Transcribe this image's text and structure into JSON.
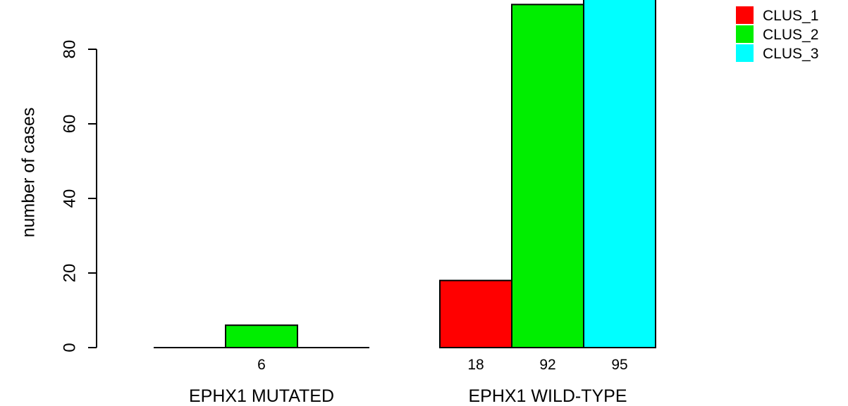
{
  "chart_data": {
    "type": "bar",
    "ylabel": "number of cases",
    "ylim": [
      0,
      92
    ],
    "yticks": [
      0,
      20,
      40,
      60,
      80
    ],
    "grid": false,
    "legend_placement": "top-right",
    "groups": [
      {
        "label": "EPHX1 MUTATED",
        "bars": [
          {
            "series": "CLUS_1",
            "value": 0,
            "label": ""
          },
          {
            "series": "CLUS_2",
            "value": 6,
            "label": "6"
          },
          {
            "series": "CLUS_3",
            "value": 0,
            "label": ""
          }
        ]
      },
      {
        "label": "EPHX1 WILD-TYPE",
        "bars": [
          {
            "series": "CLUS_1",
            "value": 18,
            "label": "18"
          },
          {
            "series": "CLUS_2",
            "value": 92,
            "label": "92"
          },
          {
            "series": "CLUS_3",
            "value": 95,
            "label": "95"
          }
        ]
      }
    ],
    "series": [
      {
        "name": "CLUS_1",
        "color": "#ff0000"
      },
      {
        "name": "CLUS_2",
        "color": "#00ee00"
      },
      {
        "name": "CLUS_3",
        "color": "#00ffff"
      }
    ]
  }
}
